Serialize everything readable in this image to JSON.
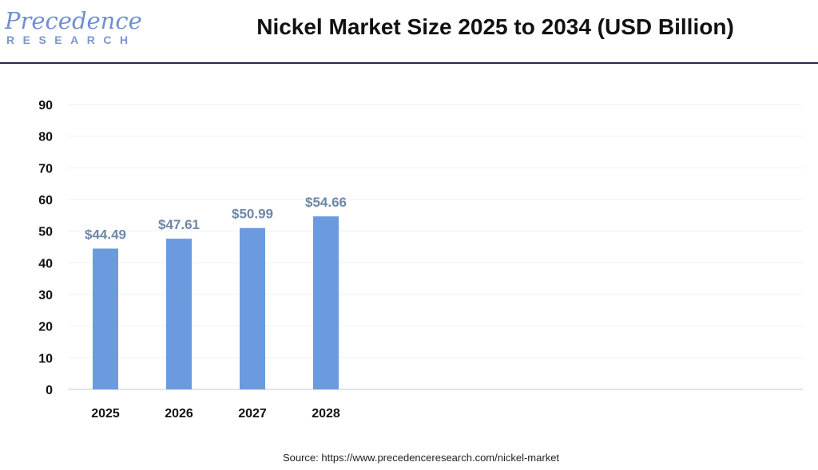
{
  "logo": {
    "main": "Precedence",
    "sub": "RESEARCH"
  },
  "chart_data": {
    "type": "bar",
    "title": "Nickel Market Size 2025 to 2034 (USD Billion)",
    "categories": [
      "2025",
      "2026",
      "2027",
      "2028"
    ],
    "values": [
      44.49,
      47.61,
      50.99,
      54.66
    ],
    "data_labels": [
      "$44.49",
      "$47.61",
      "$50.99",
      "$54.66"
    ],
    "yticks": [
      0,
      10,
      20,
      30,
      40,
      50,
      60,
      70,
      80,
      90
    ],
    "ylim": [
      0,
      90
    ],
    "xlabel": "",
    "ylabel": "",
    "grid": true,
    "bar_color": "#6b9bde",
    "label_color": "#6f87a8"
  },
  "source": "Source: https://www.precedenceresearch.com/nickel-market"
}
